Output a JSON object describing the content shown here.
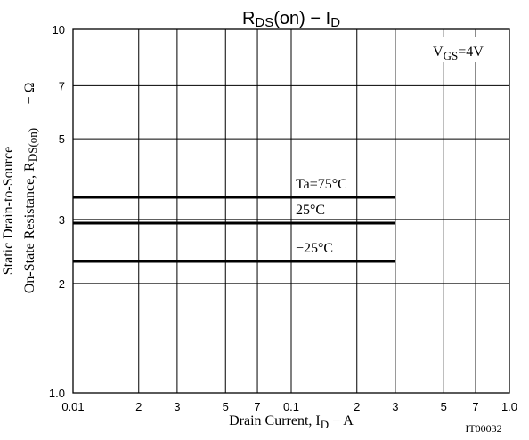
{
  "chart_data": {
    "type": "line",
    "title": "RDS(on) − ID",
    "title_main": "R",
    "title_sub": "DS",
    "title_rest": "(on)  −  I",
    "title_sub2": "D",
    "x_scale": "log",
    "y_scale": "log",
    "xlim": [
      0.01,
      1.0
    ],
    "ylim": [
      1.0,
      10
    ],
    "x_ticks": [
      {
        "value": 0.01,
        "label": "0.01"
      },
      {
        "value": 0.02,
        "label": "2"
      },
      {
        "value": 0.03,
        "label": "3"
      },
      {
        "value": 0.05,
        "label": "5"
      },
      {
        "value": 0.07,
        "label": "7"
      },
      {
        "value": 0.1,
        "label": "0.1"
      },
      {
        "value": 0.2,
        "label": "2"
      },
      {
        "value": 0.3,
        "label": "3"
      },
      {
        "value": 0.5,
        "label": "5"
      },
      {
        "value": 0.7,
        "label": "7"
      },
      {
        "value": 1.0,
        "label": "1.0"
      }
    ],
    "y_ticks": [
      {
        "value": 1.0,
        "label": "1.0"
      },
      {
        "value": 2,
        "label": "2"
      },
      {
        "value": 3,
        "label": "3"
      },
      {
        "value": 5,
        "label": "5"
      },
      {
        "value": 7,
        "label": "7"
      },
      {
        "value": 10,
        "label": "10"
      }
    ],
    "x_grid": [
      0.02,
      0.03,
      0.05,
      0.07,
      0.1,
      0.2,
      0.3,
      0.5,
      0.7
    ],
    "y_grid": [
      2,
      3,
      5,
      7
    ],
    "grid": true,
    "xlabel_main": "Drain Current, I",
    "xlabel_sub": "D",
    "xlabel_rest": "  −  A",
    "ylabel_line1": "Static Drain-to-Source",
    "ylabel_line2_main": "On-State Resistance, R",
    "ylabel_line2_sub": "DS(on)",
    "ylabel_unit": "−  Ω",
    "condition_main": "V",
    "condition_sub": "GS",
    "condition_rest": "=4V",
    "figure_id": "IT00032",
    "series": [
      {
        "name": "Ta=75°C",
        "x": [
          0.01,
          0.3
        ],
        "y": [
          3.45,
          3.45
        ]
      },
      {
        "name": "25°C",
        "x": [
          0.01,
          0.3
        ],
        "y": [
          2.93,
          2.93
        ]
      },
      {
        "name": "−25°C",
        "x": [
          0.01,
          0.3
        ],
        "y": [
          2.3,
          2.3
        ]
      }
    ]
  }
}
